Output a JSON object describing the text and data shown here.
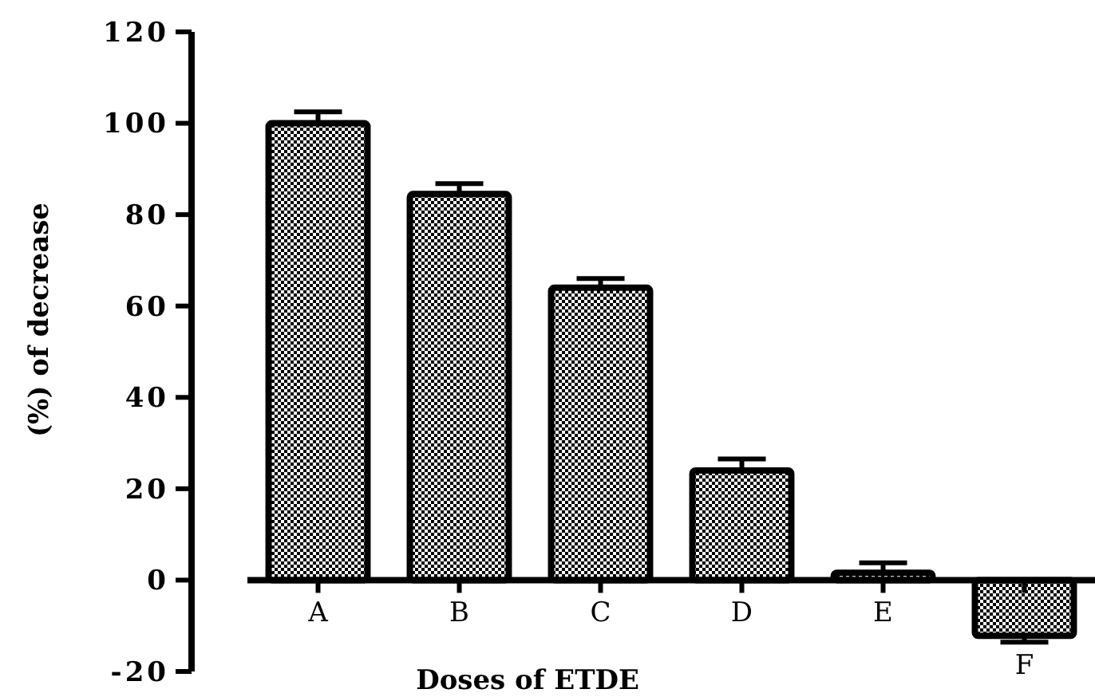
{
  "chart_data": {
    "type": "bar",
    "xlabel": "Doses of ETDE",
    "ylabel": "(%) of decrease",
    "categories": [
      "A",
      "B",
      "C",
      "D",
      "E",
      "F"
    ],
    "values": [
      100,
      84.5,
      64,
      24,
      1.6,
      -12.2
    ],
    "errors": [
      [
        100,
        102.5
      ],
      [
        84.5,
        86.8
      ],
      [
        64,
        66
      ],
      [
        24,
        26.5
      ],
      [
        1.6,
        3.8
      ],
      [
        -13.6,
        -12.2
      ]
    ],
    "color": "#000000",
    "ylim": [
      -20,
      120
    ],
    "yticks": [
      -20,
      0,
      20,
      40,
      60,
      80,
      100,
      120
    ],
    "grid": false
  }
}
